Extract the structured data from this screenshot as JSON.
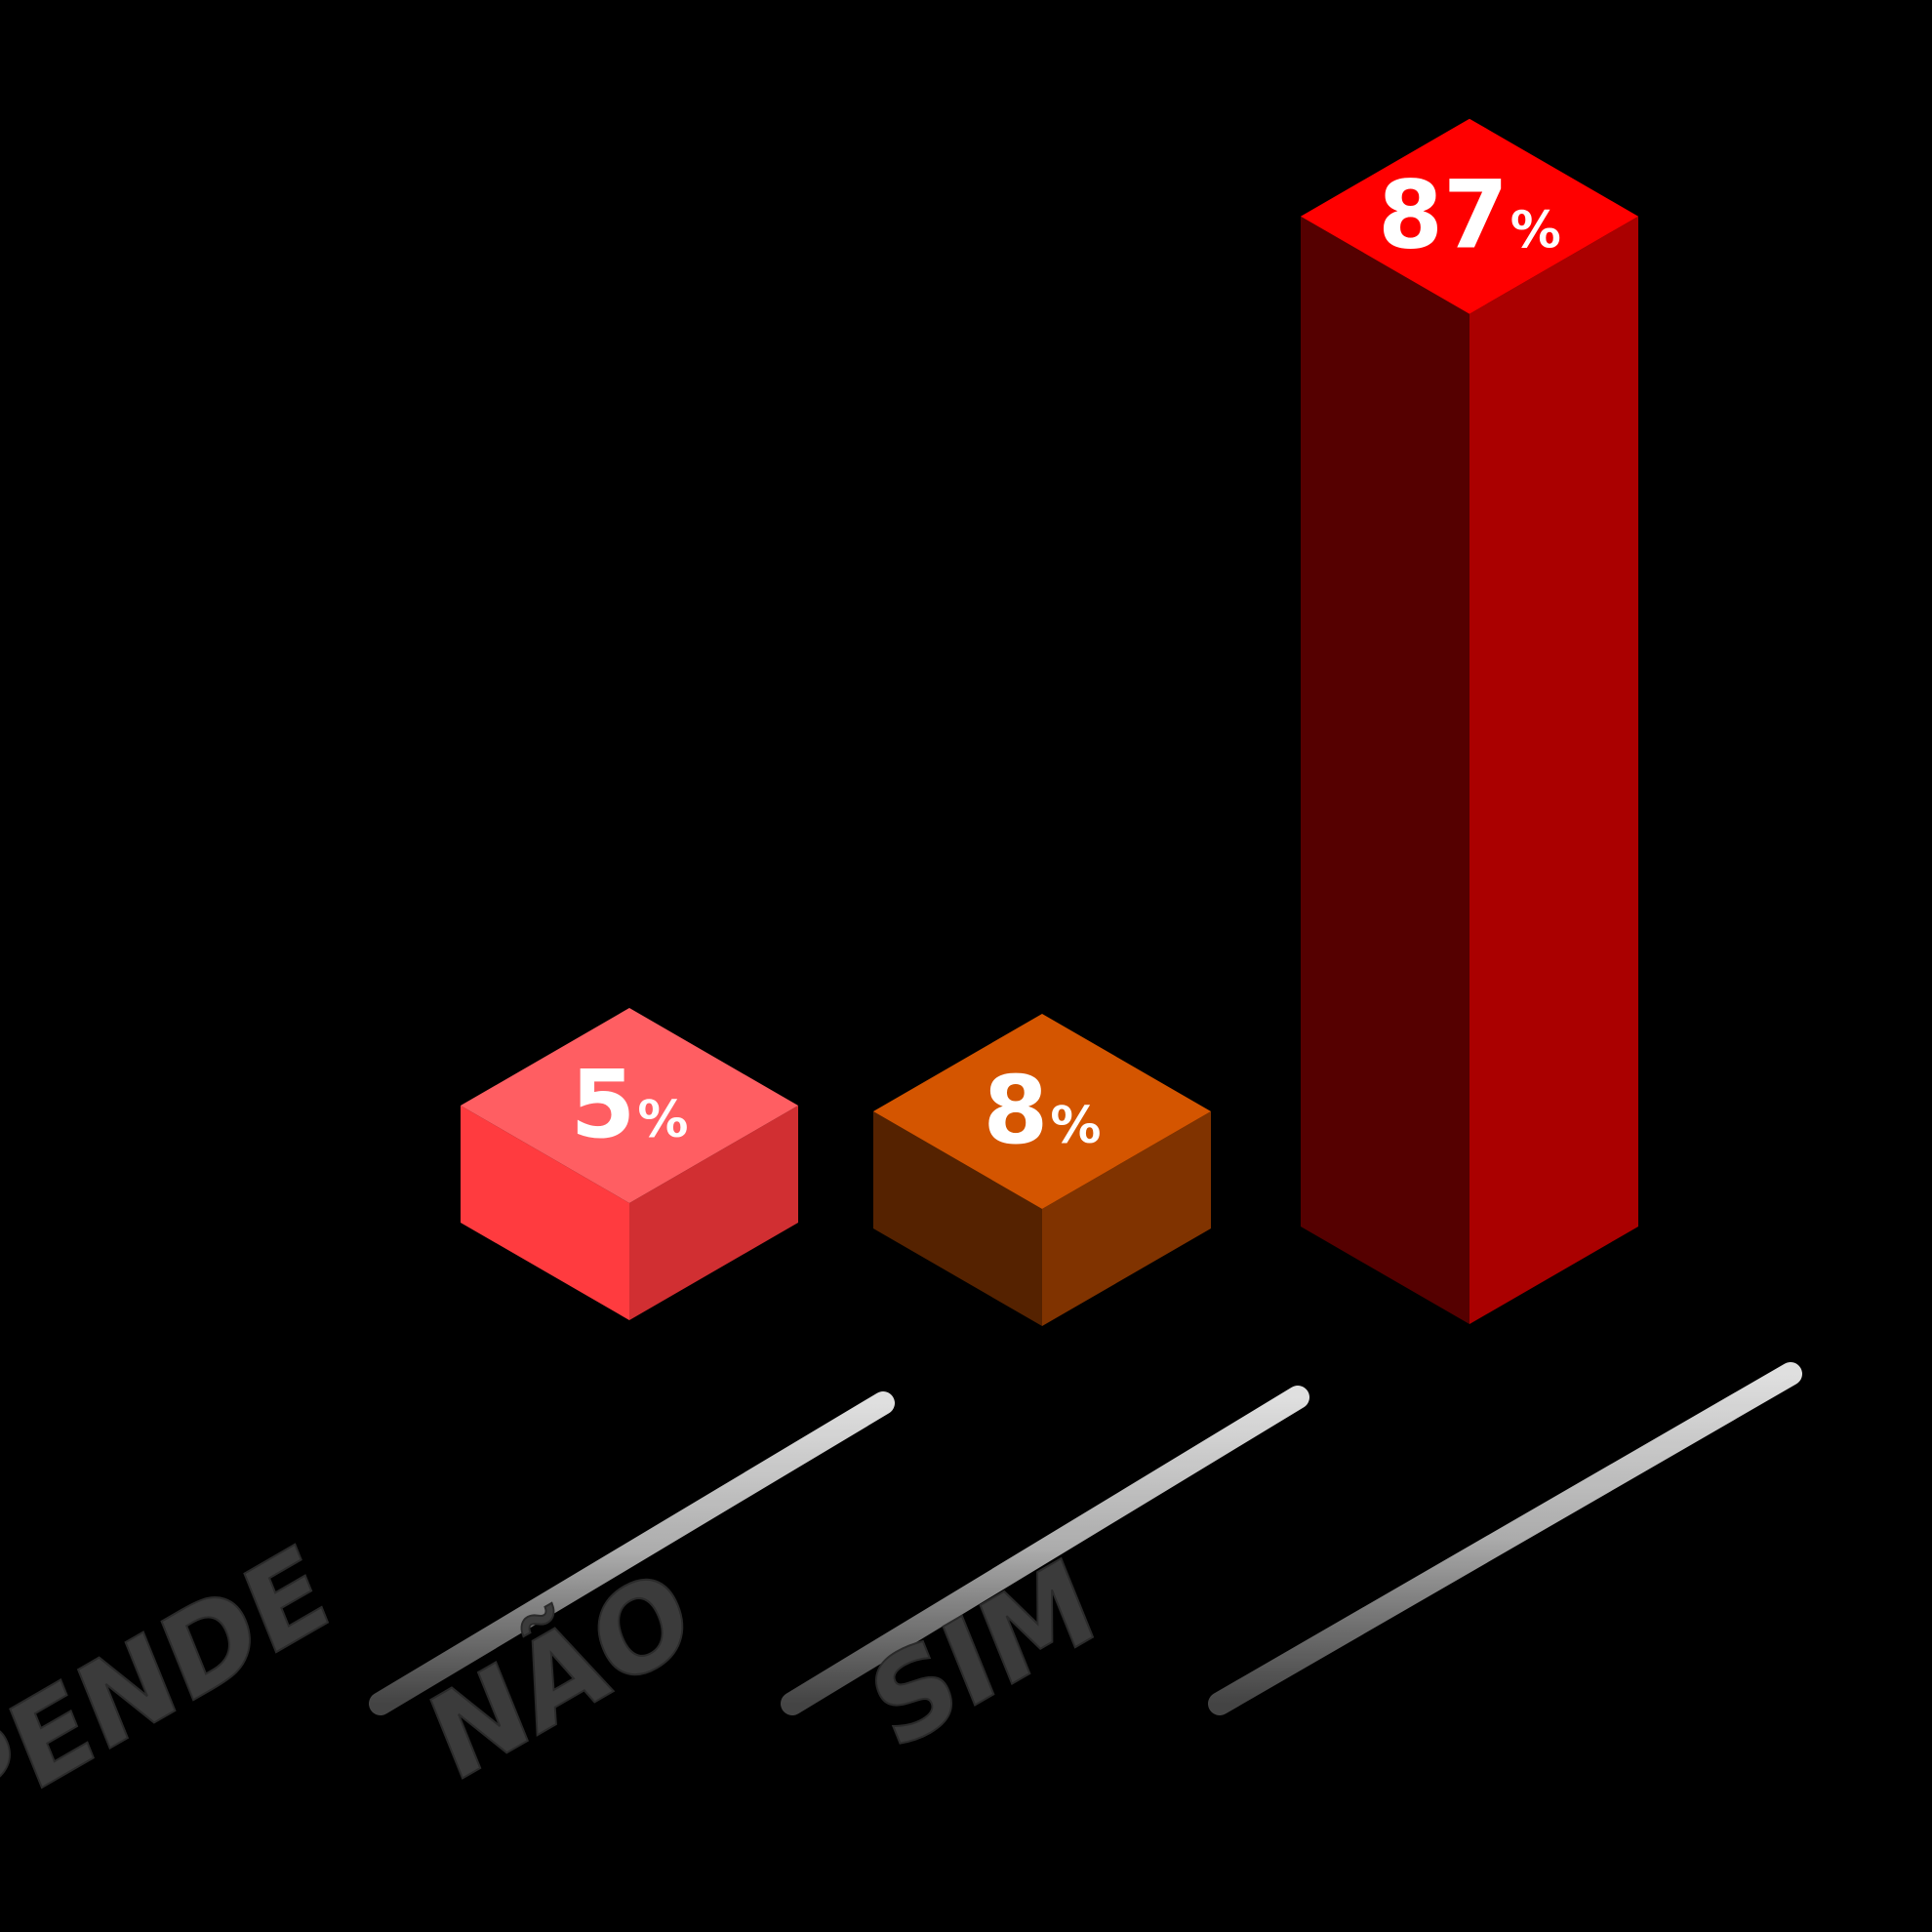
{
  "chart_data": {
    "type": "bar",
    "style": "3d-isometric",
    "categories": [
      "DEPENDE",
      "NÃO",
      "SIM"
    ],
    "values": [
      5,
      8,
      87
    ],
    "value_labels": [
      "5",
      "8",
      "87"
    ],
    "unit": "%",
    "title": "",
    "xlabel": "",
    "ylabel": "",
    "ylim": [
      0,
      100
    ],
    "grid": false,
    "legend": "none",
    "colors": [
      {
        "top": "#ff5e62",
        "front": "#ff3b3f",
        "side": "#d12f32"
      },
      {
        "top": "#d45500",
        "front": "#552200",
        "side": "#803300"
      },
      {
        "top": "#ff0000",
        "front": "#550000",
        "side": "#aa0000"
      }
    ],
    "background": "#000000",
    "label_color": "#3b3b3b"
  }
}
